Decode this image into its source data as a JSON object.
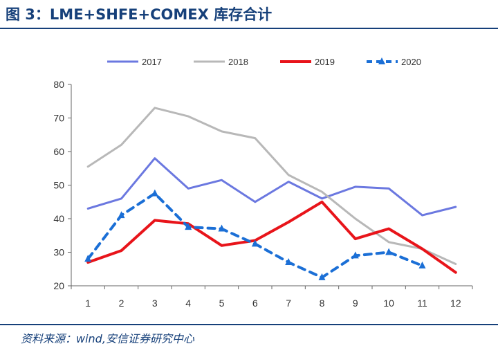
{
  "header": {
    "title": "图 3：LME+SHFE+COMEX 库存合计"
  },
  "footer": {
    "source": "资料来源：wind,安信证券研究中心"
  },
  "chart_data": {
    "type": "line",
    "title": "",
    "xlabel": "",
    "ylabel": "",
    "categories": [
      "1",
      "2",
      "3",
      "4",
      "5",
      "6",
      "7",
      "8",
      "9",
      "10",
      "11",
      "12"
    ],
    "ylim": [
      20,
      80
    ],
    "yticks": [
      20,
      30,
      40,
      50,
      60,
      70,
      80
    ],
    "grid": false,
    "legend_position": "top",
    "series": [
      {
        "name": "2017",
        "color": "#6b78e0",
        "style": "solid",
        "values": [
          43,
          46,
          58,
          49,
          51.5,
          45,
          51,
          46,
          49.5,
          49,
          41,
          43.5
        ]
      },
      {
        "name": "2018",
        "color": "#b8b8b8",
        "style": "solid",
        "values": [
          55.5,
          62,
          73,
          70.5,
          66,
          64,
          53,
          48,
          40,
          33,
          31,
          26.5
        ]
      },
      {
        "name": "2019",
        "color": "#e8141a",
        "style": "solid",
        "values": [
          27,
          30.5,
          39.5,
          38.5,
          32,
          33.5,
          39,
          45,
          34,
          37,
          31,
          24
        ]
      },
      {
        "name": "2020",
        "color": "#1b6fd6",
        "style": "dashed",
        "values": [
          28,
          41,
          47.5,
          37.5,
          37,
          32.5,
          27,
          22.5,
          29,
          30,
          26,
          null
        ]
      }
    ]
  }
}
